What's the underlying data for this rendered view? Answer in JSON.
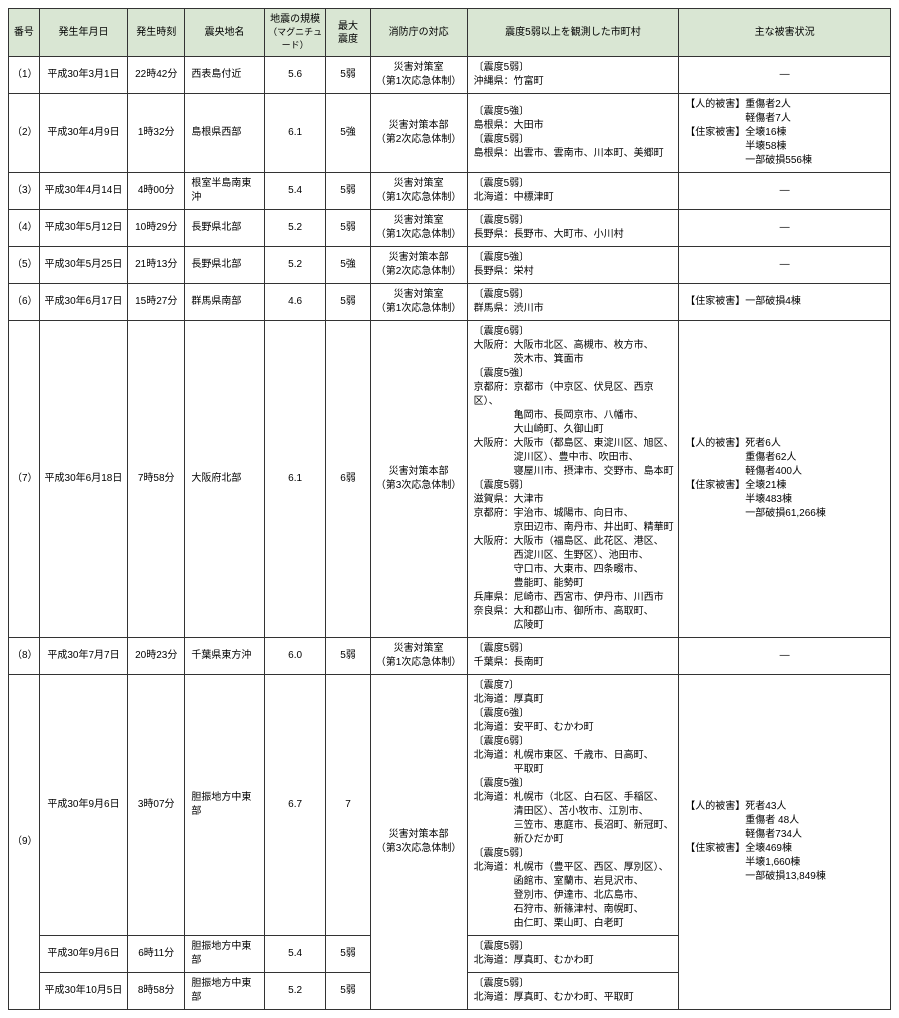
{
  "headers": {
    "num": "番号",
    "date": "発生年月日",
    "time": "発生時刻",
    "epicenter": "震央地名",
    "magnitude": "地震の規模",
    "magnitude_sub": "（マグニチュード）",
    "intensity": "最大",
    "intensity_sub": "震度",
    "response": "消防庁の対応",
    "municipalities": "震度5弱以上を観測した市町村",
    "damage": "主な被害状況"
  },
  "rows": [
    {
      "num": "（1）",
      "date": "平成30年3月1日",
      "time": "22時42分",
      "epicenter": "西表島付近",
      "mag": "5.6",
      "intensity": "5弱",
      "response_l1": "災害対策室",
      "response_l2": "（第1次応急体制）",
      "muni": "〔震度5弱〕\n沖縄県：竹富町",
      "damage": "―"
    },
    {
      "num": "（2）",
      "date": "平成30年4月9日",
      "time": "1時32分",
      "epicenter": "島根県西部",
      "mag": "6.1",
      "intensity": "5強",
      "response_l1": "災害対策本部",
      "response_l2": "（第2次応急体制）",
      "muni": "〔震度5強〕\n島根県：大田市\n〔震度5弱〕\n島根県：出雲市、雲南市、川本町、美郷町",
      "damage_lines": [
        "【人的被害】重傷者2人",
        "　　　　　　軽傷者7人",
        "【住家被害】全壊16棟",
        "　　　　　　半壊58棟",
        "　　　　　　一部破損556棟"
      ]
    },
    {
      "num": "（3）",
      "date": "平成30年4月14日",
      "time": "4時00分",
      "epicenter": "根室半島南東沖",
      "mag": "5.4",
      "intensity": "5弱",
      "response_l1": "災害対策室",
      "response_l2": "（第1次応急体制）",
      "muni": "〔震度5弱〕\n北海道：中標津町",
      "damage": "―"
    },
    {
      "num": "（4）",
      "date": "平成30年5月12日",
      "time": "10時29分",
      "epicenter": "長野県北部",
      "mag": "5.2",
      "intensity": "5弱",
      "response_l1": "災害対策室",
      "response_l2": "（第1次応急体制）",
      "muni": "〔震度5弱〕\n長野県：長野市、大町市、小川村",
      "damage": "―"
    },
    {
      "num": "（5）",
      "date": "平成30年5月25日",
      "time": "21時13分",
      "epicenter": "長野県北部",
      "mag": "5.2",
      "intensity": "5強",
      "response_l1": "災害対策本部",
      "response_l2": "（第2次応急体制）",
      "muni": "〔震度5強〕\n長野県：栄村",
      "damage": "―"
    },
    {
      "num": "（6）",
      "date": "平成30年6月17日",
      "time": "15時27分",
      "epicenter": "群馬県南部",
      "mag": "4.6",
      "intensity": "5弱",
      "response_l1": "災害対策室",
      "response_l2": "（第1次応急体制）",
      "muni": "〔震度5弱〕\n群馬県：渋川市",
      "damage_lines": [
        "【住家被害】一部破損4棟"
      ]
    },
    {
      "num": "（7）",
      "date": "平成30年6月18日",
      "time": "7時58分",
      "epicenter": "大阪府北部",
      "mag": "6.1",
      "intensity": "6弱",
      "response_l1": "災害対策本部",
      "response_l2": "（第3次応急体制）",
      "muni_lines": [
        "〔震度6弱〕",
        "大阪府：大阪市北区、高槻市、枚方市、",
        "　　　　茨木市、箕面市",
        "〔震度5強〕",
        "京都府：京都市（中京区、伏見区、西京区）、",
        "　　　　亀岡市、長岡京市、八幡市、",
        "　　　　大山崎町、久御山町",
        "大阪府：大阪市（都島区、東淀川区、旭区、",
        "　　　　淀川区）、豊中市、吹田市、",
        "　　　　寝屋川市、摂津市、交野市、島本町",
        "〔震度5弱〕",
        "滋賀県：大津市",
        "京都府：宇治市、城陽市、向日市、",
        "　　　　京田辺市、南丹市、井出町、精華町",
        "大阪府：大阪市（福島区、此花区、港区、",
        "　　　　西淀川区、生野区）、池田市、",
        "　　　　守口市、大東市、四条畷市、",
        "　　　　豊能町、能勢町",
        "兵庫県：尼崎市、西宮市、伊丹市、川西市",
        "奈良県：大和郡山市、御所市、高取町、",
        "　　　　広陵町"
      ],
      "damage_lines": [
        "【人的被害】死者6人",
        "　　　　　　重傷者62人",
        "　　　　　　軽傷者400人",
        "【住家被害】全壊21棟",
        "　　　　　　半壊483棟",
        "　　　　　　一部破損61,266棟"
      ]
    },
    {
      "num": "（8）",
      "date": "平成30年7月7日",
      "time": "20時23分",
      "epicenter": "千葉県東方沖",
      "mag": "6.0",
      "intensity": "5弱",
      "response_l1": "災害対策室",
      "response_l2": "（第1次応急体制）",
      "muni": "〔震度5弱〕\n千葉県：長南町",
      "damage": "―"
    }
  ],
  "row9": {
    "num": "（9）",
    "response_l1": "災害対策本部",
    "response_l2": "（第3次応急体制）",
    "sub1": {
      "date": "平成30年9月6日",
      "time": "3時07分",
      "epicenter": "胆振地方中東部",
      "mag": "6.7",
      "intensity": "7",
      "muni_lines": [
        "〔震度7〕",
        "北海道：厚真町",
        "〔震度6強〕",
        "北海道：安平町、むかわ町",
        "〔震度6弱〕",
        "北海道：札幌市東区、千歳市、日高町、",
        "　　　　平取町",
        "〔震度5強〕",
        "北海道：札幌市（北区、白石区、手稲区、",
        "　　　　清田区）、苫小牧市、江別市、",
        "　　　　三笠市、恵庭市、長沼町、新冠町、",
        "　　　　新ひだか町",
        "〔震度5弱〕",
        "北海道：札幌市（豊平区、西区、厚別区）、",
        "　　　　函館市、室蘭市、岩見沢市、",
        "　　　　登別市、伊達市、北広島市、",
        "　　　　石狩市、新篠津村、南幌町、",
        "　　　　由仁町、栗山町、白老町"
      ]
    },
    "sub2": {
      "date": "平成30年9月6日",
      "time": "6時11分",
      "epicenter": "胆振地方中東部",
      "mag": "5.4",
      "intensity": "5弱",
      "muni": "〔震度5弱〕\n北海道：厚真町、むかわ町"
    },
    "sub3": {
      "date": "平成30年10月5日",
      "time": "8時58分",
      "epicenter": "胆振地方中東部",
      "mag": "5.2",
      "intensity": "5弱",
      "muni": "〔震度5弱〕\n北海道：厚真町、むかわ町、平取町"
    },
    "damage_lines": [
      "【人的被害】死者43人",
      "　　　　　　重傷者 48人",
      "　　　　　　軽傷者734人",
      "【住家被害】全壊469棟",
      "　　　　　　半壊1,660棟",
      "　　　　　　一部破損13,849棟"
    ]
  }
}
